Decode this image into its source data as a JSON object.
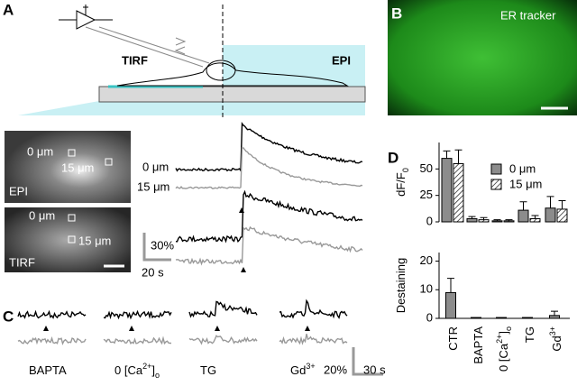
{
  "panel_a": {
    "label": "A",
    "left_label": "TIRF",
    "right_label": "EPI",
    "images": [
      {
        "label": "EPI",
        "point_labels": [
          "0 μm",
          "15 μm"
        ]
      },
      {
        "label": "TIRF",
        "point_labels": [
          "0 μm",
          "15 μm"
        ]
      }
    ],
    "trace_labels": [
      "0 μm",
      "15 μm"
    ],
    "scale_y": "30%",
    "scale_x": "20 s"
  },
  "panel_b": {
    "label": "B",
    "title": "ER tracker"
  },
  "panel_c": {
    "label": "C",
    "conditions": [
      [
        "BAPTA"
      ],
      [
        "0 [Ca",
        {
          "sup": "2+"
        },
        "]",
        {
          "sub": "o"
        }
      ],
      [
        "TG"
      ],
      [
        "Gd",
        {
          "sup": "3+"
        }
      ]
    ],
    "scale_y": "20%",
    "scale_x": "30 s"
  },
  "panel_d": {
    "label": "D",
    "categories": [
      [
        "CTR"
      ],
      [
        "BAPTA"
      ],
      [
        "0 [Ca",
        {
          "sup": "2+"
        },
        "]",
        {
          "sub": "o"
        }
      ],
      [
        "TG"
      ],
      [
        "Gd",
        {
          "sup": "3+"
        }
      ]
    ],
    "charts": [
      {
        "y_label": [
          "dF/F",
          {
            "sub": "0"
          }
        ],
        "ylim": [
          0,
          75
        ],
        "yticks": [
          0,
          25,
          50
        ],
        "series": [
          {
            "name": "0 μm",
            "color": "#8c8c8c",
            "values": [
              60,
              3,
              1,
              11,
              13
            ],
            "errors": [
              7,
              2,
              1,
              8,
              11
            ]
          },
          {
            "name": "15 μm",
            "color": "hatch",
            "values": [
              55,
              2,
              1,
              3,
              12
            ],
            "errors": [
              13,
              2,
              1,
              3,
              8
            ]
          }
        ]
      },
      {
        "y_label": [
          "Destaining"
        ],
        "ylim": [
          0,
          23
        ],
        "yticks": [
          0,
          10,
          20
        ],
        "series": [
          {
            "name": "0 μm",
            "color": "#8c8c8c",
            "values": [
              9,
              0.3,
              0.3,
              0.3,
              1
            ],
            "errors": [
              5,
              0,
              0,
              0,
              1.5
            ]
          }
        ]
      }
    ]
  }
}
